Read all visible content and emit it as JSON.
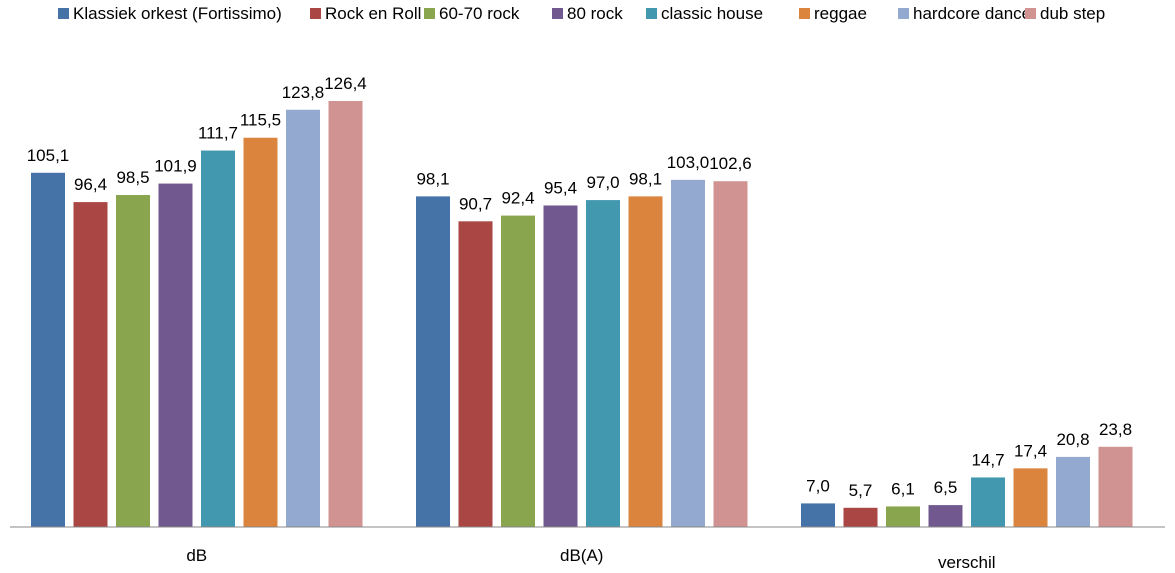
{
  "chart_data": {
    "type": "bar",
    "categories": [
      "dB",
      "dB(A)",
      "verschil"
    ],
    "series": [
      {
        "name": "Klassiek orkest (Fortissimo)",
        "color": "#4572A7",
        "values": [
          105.1,
          98.1,
          7.0
        ],
        "labels": [
          "105,1",
          "98,1",
          "7,0"
        ]
      },
      {
        "name": "Rock en Roll",
        "color": "#AA4643",
        "values": [
          96.4,
          90.7,
          5.7
        ],
        "labels": [
          "96,4",
          "90,7",
          "5,7"
        ]
      },
      {
        "name": "60-70 rock",
        "color": "#89A54E",
        "values": [
          98.5,
          92.4,
          6.1
        ],
        "labels": [
          "98,5",
          "92,4",
          "6,1"
        ]
      },
      {
        "name": "80 rock",
        "color": "#71588F",
        "values": [
          101.9,
          95.4,
          6.5
        ],
        "labels": [
          "101,9",
          "95,4",
          "6,5"
        ]
      },
      {
        "name": "classic house",
        "color": "#4198AF",
        "values": [
          111.7,
          97.0,
          14.7
        ],
        "labels": [
          "111,7",
          "97,0",
          "14,7"
        ]
      },
      {
        "name": "reggae",
        "color": "#DB843D",
        "values": [
          115.5,
          98.1,
          17.4
        ],
        "labels": [
          "115,5",
          "98,1",
          "17,4"
        ]
      },
      {
        "name": "hardcore dance",
        "color": "#93A9CF",
        "values": [
          123.8,
          103.0,
          20.8
        ],
        "labels": [
          "123,8",
          "103,0",
          "20,8"
        ]
      },
      {
        "name": "dub step",
        "color": "#D19392",
        "values": [
          126.4,
          102.6,
          23.8
        ],
        "labels": [
          "126,4",
          "102,6",
          "23,8"
        ]
      }
    ],
    "title": "",
    "xlabel": "",
    "ylabel": "",
    "ylim": [
      0,
      130
    ],
    "grid": false,
    "legend": "top"
  }
}
